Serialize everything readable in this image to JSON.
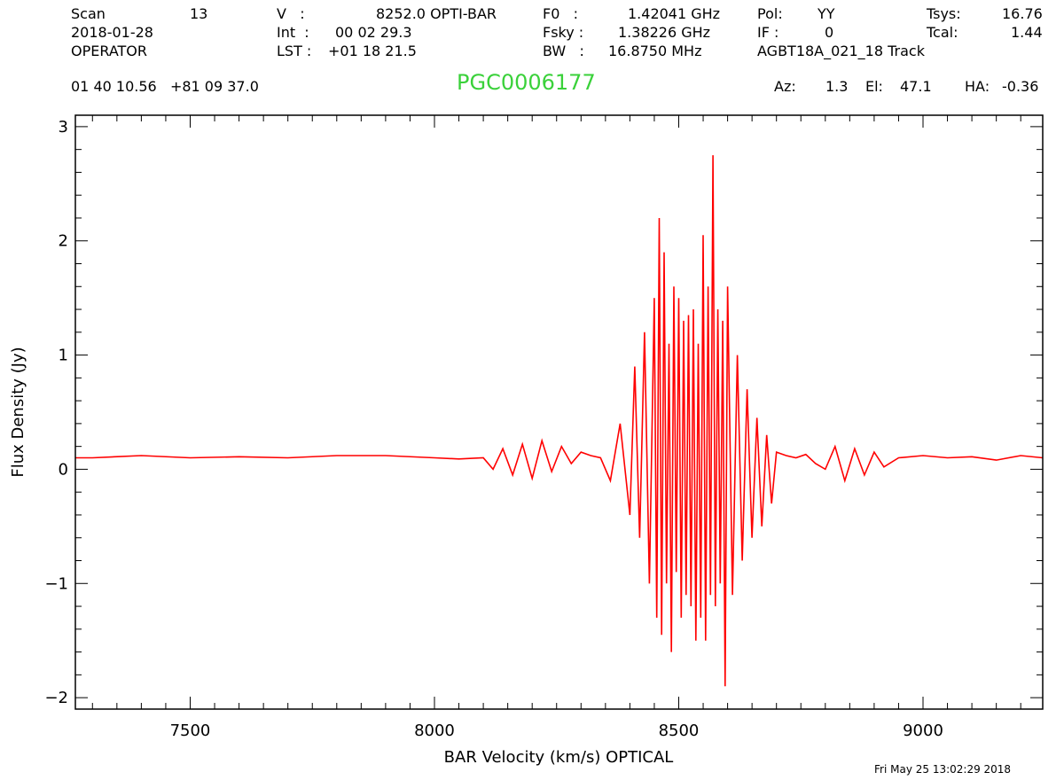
{
  "header": {
    "scan_label": "Scan",
    "scan_value": "13",
    "date": "2018-01-28",
    "observer": "OPERATOR",
    "v_label": "V   :",
    "v_value": "8252.0 OPTI-BAR",
    "int_label": "Int  :",
    "int_value": "00 02 29.3",
    "lst_label": "LST :",
    "lst_value": "+01 18 21.5",
    "f0_label": "F0   :",
    "f0_value": "1.42041 GHz",
    "fsky_label": "Fsky :",
    "fsky_value": "1.38226 GHz",
    "bw_label": "BW   :",
    "bw_value": "16.8750 MHz",
    "pol_label": "Pol:",
    "pol_value": "YY",
    "if_label": "IF :",
    "if_value": "0",
    "project": "AGBT18A_021_18 Track",
    "tsys_label": "Tsys:",
    "tsys_value": "16.76",
    "tcal_label": "Tcal:",
    "tcal_value": "1.44",
    "coords": "01 40 10.56   +81 09 37.0",
    "object_name": "PGC0006177",
    "az_label": "Az:",
    "az_value": "1.3",
    "el_label": "El:",
    "el_value": "47.1",
    "ha_label": "HA:",
    "ha_value": "-0.36",
    "timestamp": "Fri May 25 13:02:29 2018"
  },
  "chart_data": {
    "type": "line",
    "title": "PGC0006177",
    "xlabel": "BAR Velocity (km/s) OPTICAL",
    "ylabel": "Flux Density (Jy)",
    "xlim": [
      7265,
      9245
    ],
    "ylim": [
      -2.1,
      3.1
    ],
    "xticks": [
      7500,
      8000,
      8500,
      9000
    ],
    "xtick_labels": [
      "7500",
      "8000",
      "8500",
      "9000"
    ],
    "yticks": [
      -2,
      -1,
      0,
      1,
      2,
      3
    ],
    "ytick_labels": [
      "−2",
      "−1",
      "0",
      "1",
      "2",
      "3"
    ],
    "line_color": "#ff0000",
    "grid": false,
    "series": [
      {
        "x": [
          7265,
          7300,
          7400,
          7500,
          7600,
          7700,
          7800,
          7900,
          8000,
          8050,
          8100,
          8120,
          8140,
          8160,
          8180,
          8200,
          8220,
          8240,
          8260,
          8280,
          8300,
          8320,
          8340,
          8360,
          8380,
          8400,
          8410,
          8420,
          8430,
          8440,
          8450,
          8455,
          8460,
          8465,
          8470,
          8475,
          8480,
          8485,
          8490,
          8495,
          8500,
          8505,
          8510,
          8515,
          8520,
          8525,
          8530,
          8535,
          8540,
          8545,
          8550,
          8555,
          8560,
          8565,
          8570,
          8575,
          8580,
          8585,
          8590,
          8595,
          8600,
          8610,
          8620,
          8630,
          8640,
          8650,
          8660,
          8670,
          8680,
          8690,
          8700,
          8720,
          8740,
          8760,
          8780,
          8800,
          8820,
          8840,
          8860,
          8880,
          8900,
          8920,
          8950,
          9000,
          9050,
          9100,
          9150,
          9200,
          9245
        ],
        "y": [
          0.1,
          0.1,
          0.12,
          0.1,
          0.11,
          0.1,
          0.12,
          0.12,
          0.1,
          0.09,
          0.1,
          0.0,
          0.18,
          -0.05,
          0.22,
          -0.08,
          0.25,
          -0.02,
          0.2,
          0.05,
          0.15,
          0.12,
          0.1,
          -0.1,
          0.4,
          -0.4,
          0.9,
          -0.6,
          1.2,
          -1.0,
          1.5,
          -1.3,
          2.2,
          -1.45,
          1.9,
          -1.0,
          1.1,
          -1.6,
          1.6,
          -0.9,
          1.5,
          -1.3,
          1.3,
          -1.1,
          1.35,
          -1.2,
          1.4,
          -1.5,
          1.1,
          -1.3,
          2.05,
          -1.5,
          1.6,
          -1.1,
          2.75,
          -1.2,
          1.4,
          -1.0,
          1.3,
          -1.9,
          1.6,
          -1.1,
          1.0,
          -0.8,
          0.7,
          -0.6,
          0.45,
          -0.5,
          0.3,
          -0.3,
          0.15,
          0.12,
          0.1,
          0.13,
          0.05,
          0.0,
          0.2,
          -0.1,
          0.18,
          -0.05,
          0.15,
          0.02,
          0.1,
          0.12,
          0.1,
          0.11,
          0.08,
          0.12,
          0.1
        ]
      }
    ]
  }
}
